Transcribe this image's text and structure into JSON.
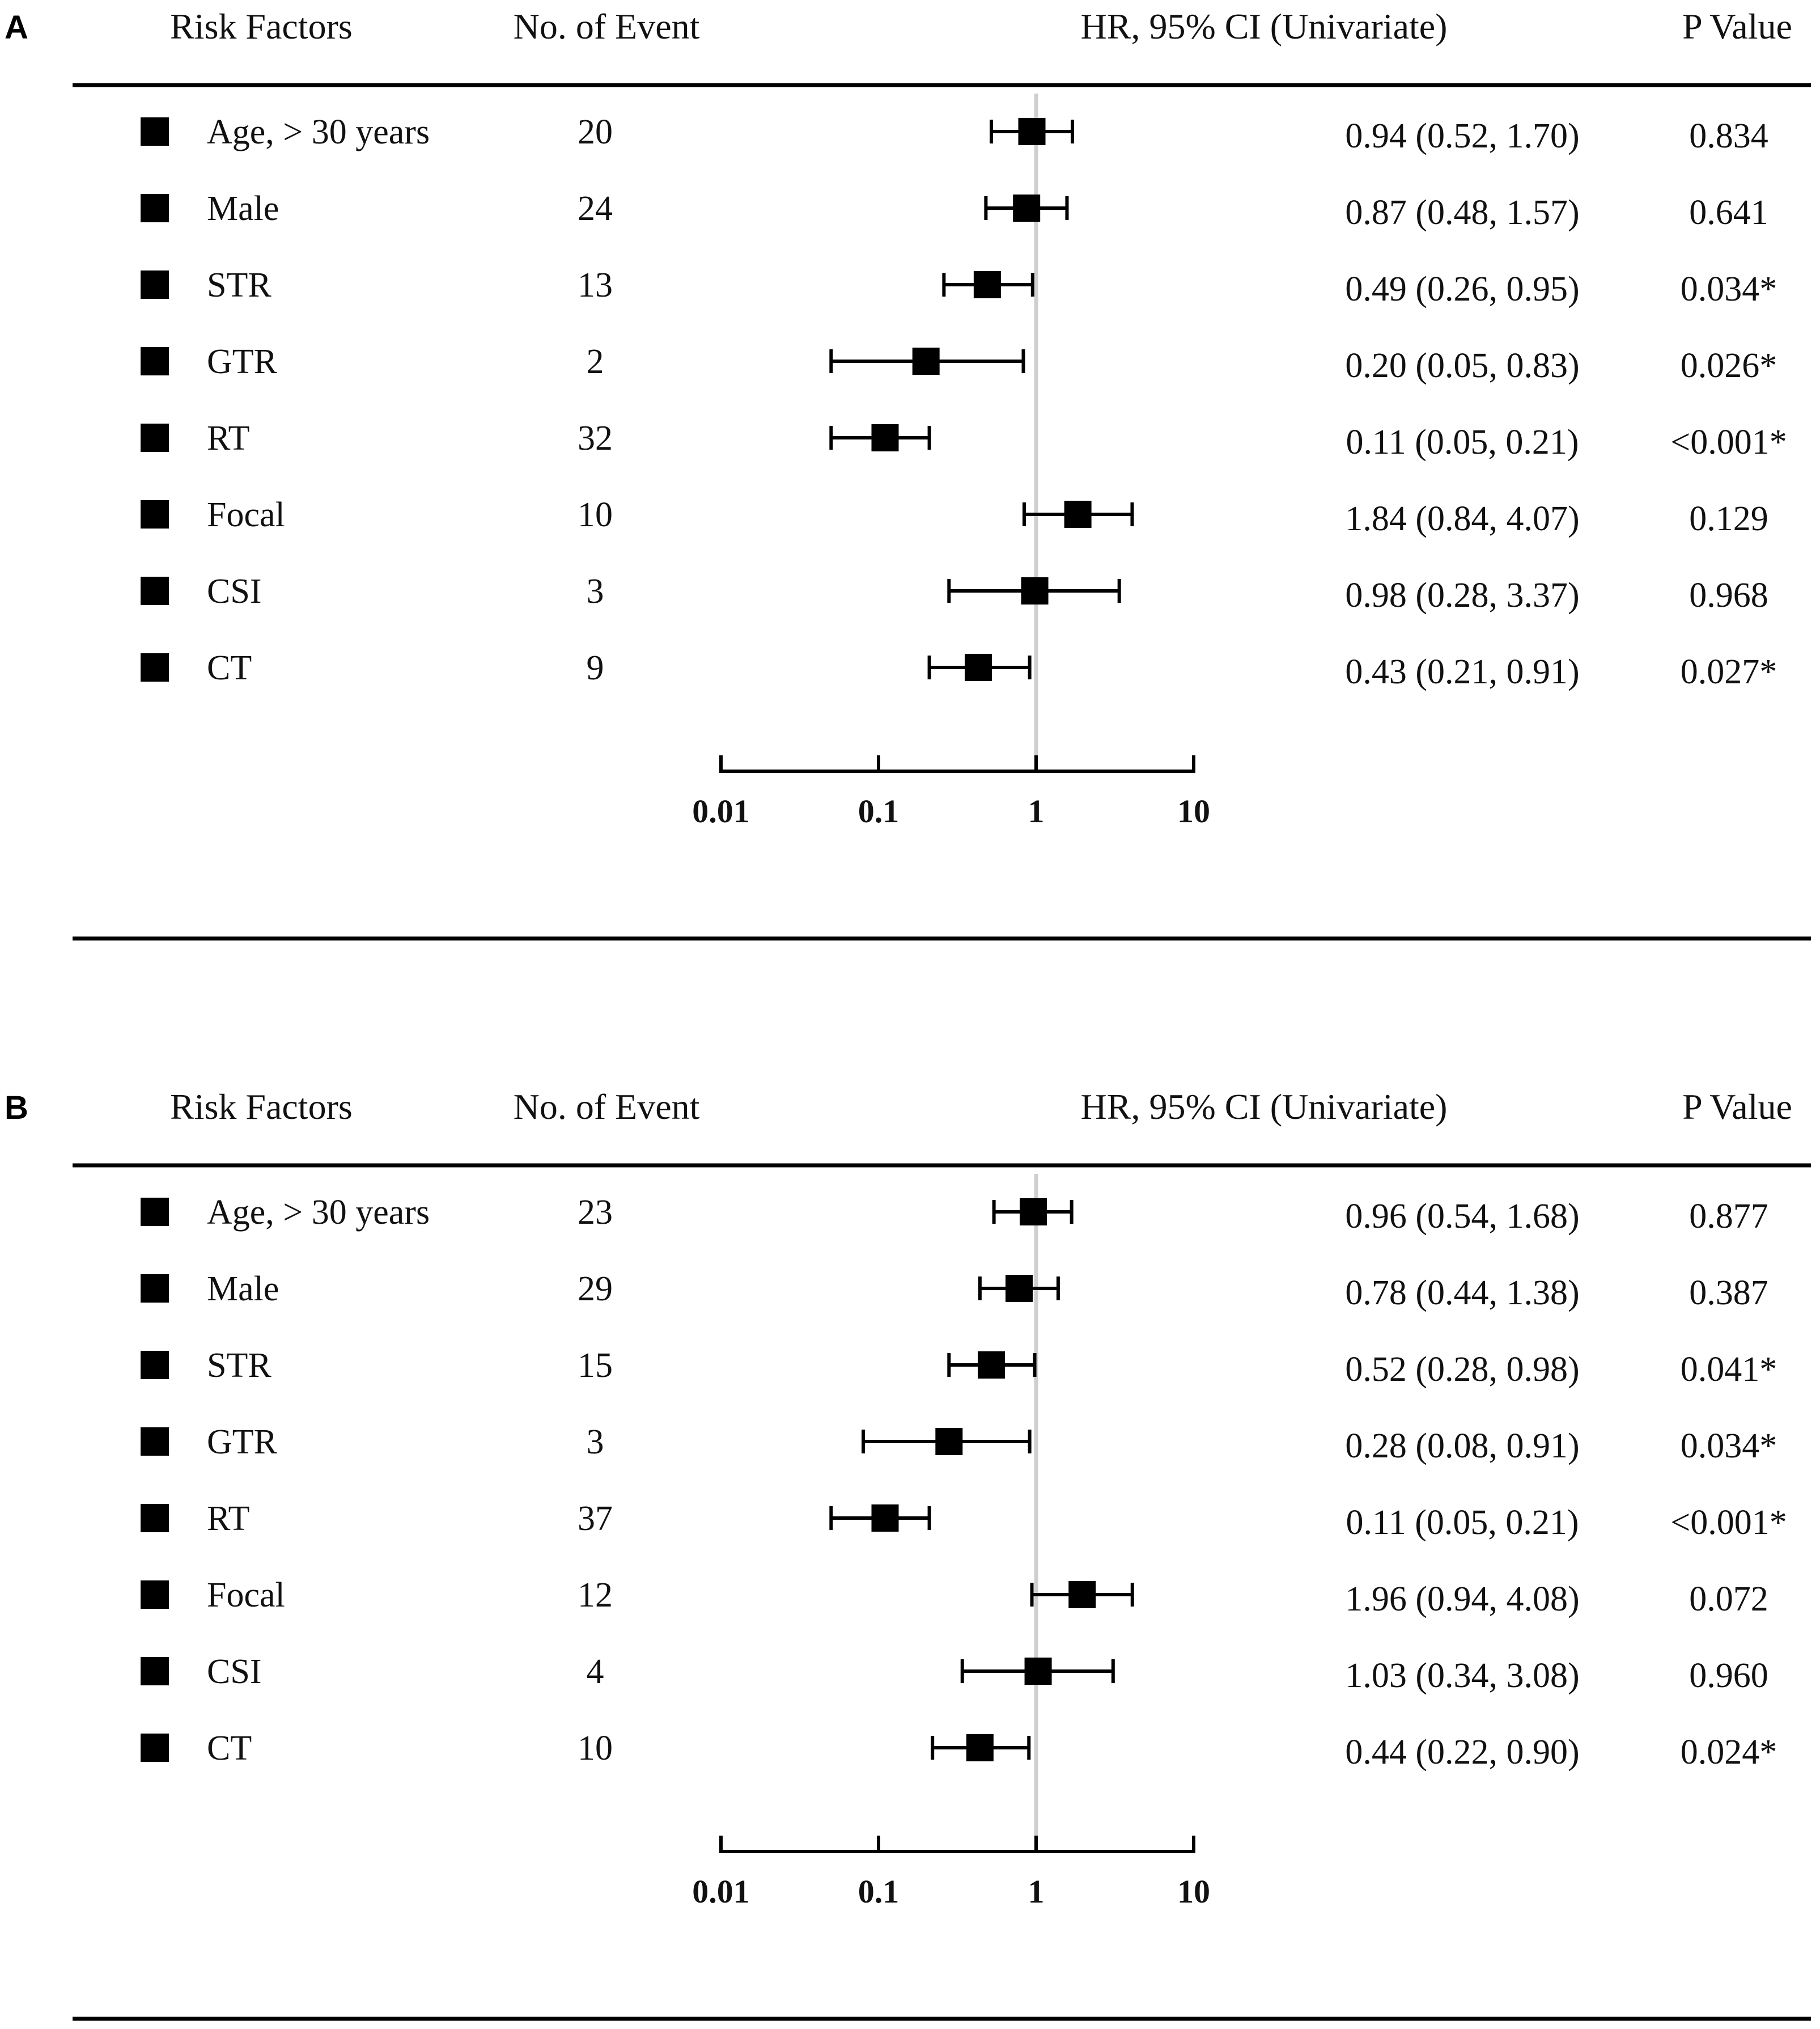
{
  "chart_data": [
    {
      "type": "forest",
      "panel": "A",
      "headers": {
        "risk_factors": "Risk Factors",
        "events": "No. of Event",
        "hr": "HR, 95% CI (Univariate)",
        "p": "P Value"
      },
      "x_scale": "log",
      "xlim": [
        0.01,
        10
      ],
      "x_ticks": [
        0.01,
        0.1,
        1,
        10
      ],
      "x_tick_labels": [
        "0.01",
        "0.1",
        "1",
        "10"
      ],
      "reference_line": 1,
      "rows": [
        {
          "label": "Age, > 30 years",
          "events": "20",
          "hr": 0.94,
          "lo": 0.52,
          "hi": 1.7,
          "hr_text": "0.94 (0.52, 1.70)",
          "p": "0.834"
        },
        {
          "label": "Male",
          "events": "24",
          "hr": 0.87,
          "lo": 0.48,
          "hi": 1.57,
          "hr_text": "0.87 (0.48, 1.57)",
          "p": "0.641"
        },
        {
          "label": "STR",
          "events": "13",
          "hr": 0.49,
          "lo": 0.26,
          "hi": 0.95,
          "hr_text": "0.49 (0.26, 0.95)",
          "p": "0.034*"
        },
        {
          "label": "GTR",
          "events": "2",
          "hr": 0.2,
          "lo": 0.05,
          "hi": 0.83,
          "hr_text": "0.20 (0.05, 0.83)",
          "p": "0.026*"
        },
        {
          "label": "RT",
          "events": "32",
          "hr": 0.11,
          "lo": 0.05,
          "hi": 0.21,
          "hr_text": "0.11 (0.05, 0.21)",
          "p": "<0.001*"
        },
        {
          "label": "Focal",
          "events": "10",
          "hr": 1.84,
          "lo": 0.84,
          "hi": 4.07,
          "hr_text": "1.84 (0.84, 4.07)",
          "p": "0.129"
        },
        {
          "label": "CSI",
          "events": "3",
          "hr": 0.98,
          "lo": 0.28,
          "hi": 3.37,
          "hr_text": "0.98 (0.28, 3.37)",
          "p": "0.968"
        },
        {
          "label": "CT",
          "events": "9",
          "hr": 0.43,
          "lo": 0.21,
          "hi": 0.91,
          "hr_text": "0.43 (0.21, 0.91)",
          "p": "0.027*"
        }
      ]
    },
    {
      "type": "forest",
      "panel": "B",
      "headers": {
        "risk_factors": "Risk Factors",
        "events": "No. of Event",
        "hr": "HR, 95% CI (Univariate)",
        "p": "P Value"
      },
      "x_scale": "log",
      "xlim": [
        0.01,
        10
      ],
      "x_ticks": [
        0.01,
        0.1,
        1,
        10
      ],
      "x_tick_labels": [
        "0.01",
        "0.1",
        "1",
        "10"
      ],
      "reference_line": 1,
      "rows": [
        {
          "label": "Age, > 30 years",
          "events": "23",
          "hr": 0.96,
          "lo": 0.54,
          "hi": 1.68,
          "hr_text": "0.96 (0.54, 1.68)",
          "p": "0.877"
        },
        {
          "label": "Male",
          "events": "29",
          "hr": 0.78,
          "lo": 0.44,
          "hi": 1.38,
          "hr_text": "0.78 (0.44, 1.38)",
          "p": "0.387"
        },
        {
          "label": "STR",
          "events": "15",
          "hr": 0.52,
          "lo": 0.28,
          "hi": 0.98,
          "hr_text": "0.52 (0.28, 0.98)",
          "p": "0.041*"
        },
        {
          "label": "GTR",
          "events": "3",
          "hr": 0.28,
          "lo": 0.08,
          "hi": 0.91,
          "hr_text": "0.28 (0.08, 0.91)",
          "p": "0.034*"
        },
        {
          "label": "RT",
          "events": "37",
          "hr": 0.11,
          "lo": 0.05,
          "hi": 0.21,
          "hr_text": "0.11 (0.05, 0.21)",
          "p": "<0.001*"
        },
        {
          "label": "Focal",
          "events": "12",
          "hr": 1.96,
          "lo": 0.94,
          "hi": 4.08,
          "hr_text": "1.96 (0.94, 4.08)",
          "p": "0.072"
        },
        {
          "label": "CSI",
          "events": "4",
          "hr": 1.03,
          "lo": 0.34,
          "hi": 3.08,
          "hr_text": "1.03 (0.34, 3.08)",
          "p": "0.960"
        },
        {
          "label": "CT",
          "events": "10",
          "hr": 0.44,
          "lo": 0.22,
          "hi": 0.9,
          "hr_text": "0.44 (0.22, 0.90)",
          "p": "0.024*"
        }
      ]
    }
  ]
}
